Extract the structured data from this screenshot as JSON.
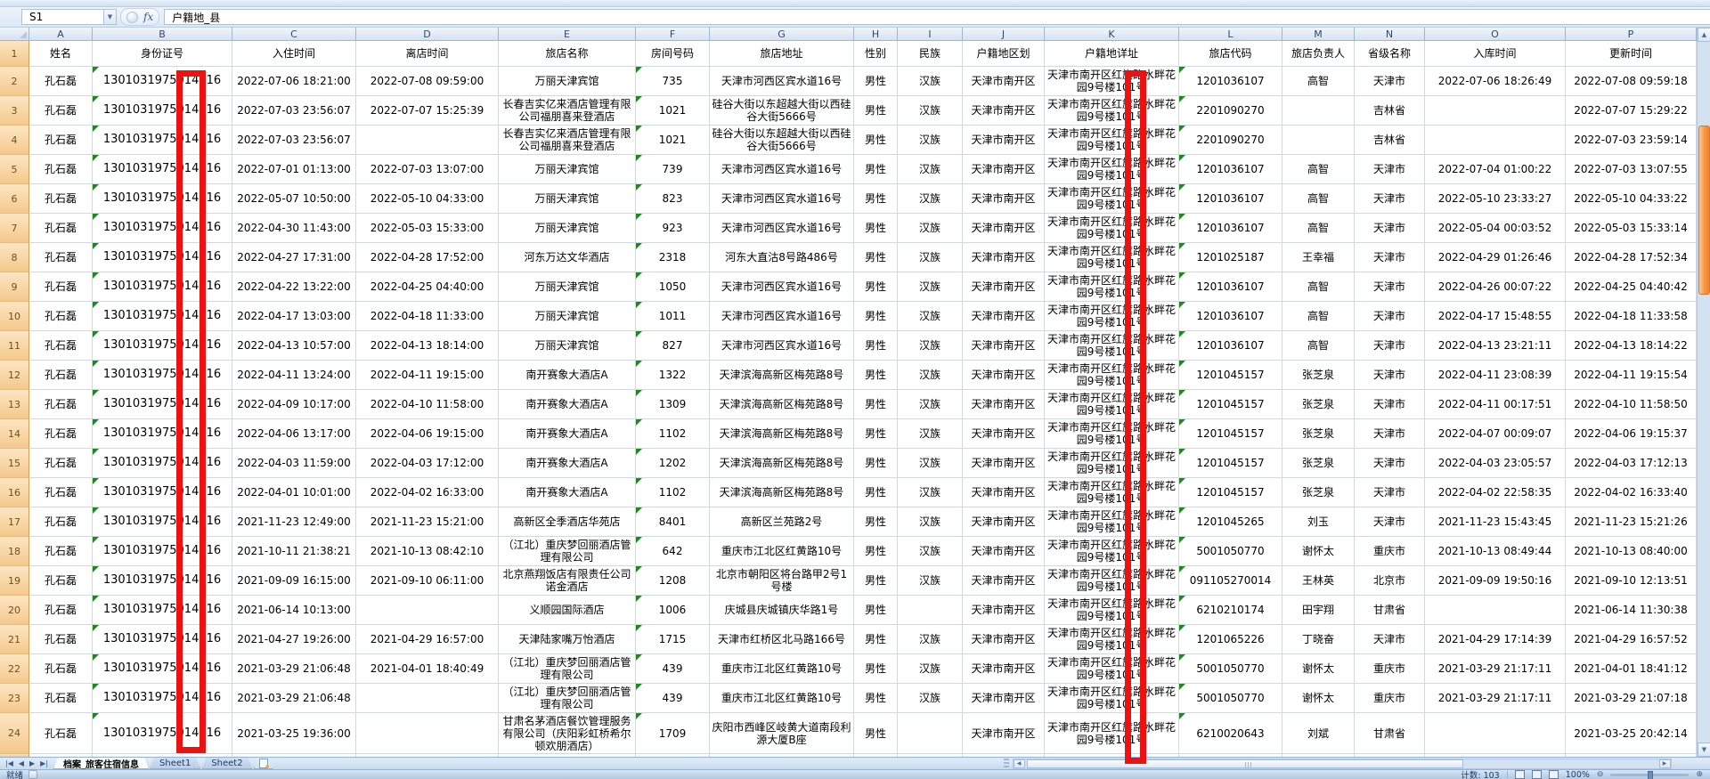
{
  "formula_bar": {
    "name_box": "S1",
    "fx_label": "fx",
    "formula": "户籍地_县"
  },
  "grid": {
    "columns": [
      {
        "letter": "A",
        "label": "姓名"
      },
      {
        "letter": "B",
        "label": "身份证号"
      },
      {
        "letter": "C",
        "label": "入住时间"
      },
      {
        "letter": "D",
        "label": "离店时间"
      },
      {
        "letter": "E",
        "label": "旅店名称"
      },
      {
        "letter": "F",
        "label": "房间号码"
      },
      {
        "letter": "G",
        "label": "旅店地址"
      },
      {
        "letter": "H",
        "label": "性别"
      },
      {
        "letter": "I",
        "label": "民族"
      },
      {
        "letter": "J",
        "label": "户籍地区划"
      },
      {
        "letter": "K",
        "label": "户籍地详址"
      },
      {
        "letter": "L",
        "label": "旅店代码"
      },
      {
        "letter": "M",
        "label": "旅店负责人"
      },
      {
        "letter": "N",
        "label": "省级名称"
      },
      {
        "letter": "O",
        "label": "入库时间"
      },
      {
        "letter": "P",
        "label": "更新时间"
      }
    ],
    "flag_columns": [
      1,
      5,
      11
    ],
    "rows": [
      {
        "n": 2,
        "cells": [
          "孔石磊",
          "1301031975014016",
          "2022-07-06 18:21:00",
          "2022-07-08 09:59:00",
          "万丽天津宾馆",
          "735",
          "天津市河西区宾水道16号",
          "男性",
          "汉族",
          "天津市南开区",
          "天津市南开区红旗路水畔花园9号楼101号",
          "1201036107",
          "高智",
          "天津市",
          "2022-07-06 18:26:49",
          "2022-07-08 09:59:18"
        ]
      },
      {
        "n": 3,
        "cells": [
          "孔石磊",
          "1301031975014016",
          "2022-07-03 23:56:07",
          "2022-07-07 15:25:39",
          "长春吉实亿来酒店管理有限公司福朋喜来登酒店",
          "1021",
          "硅谷大街以东超越大街以西硅谷大街5666号",
          "男性",
          "汉族",
          "天津市南开区",
          "天津市南开区红旗路水畔花园9号楼101号",
          "2201090270",
          "",
          "吉林省",
          "",
          "2022-07-07 15:29:22"
        ]
      },
      {
        "n": 4,
        "cells": [
          "孔石磊",
          "1301031975014016",
          "2022-07-03 23:56:07",
          "",
          "长春吉实亿来酒店管理有限公司福朋喜来登酒店",
          "1021",
          "硅谷大街以东超越大街以西硅谷大街5666号",
          "男性",
          "汉族",
          "天津市南开区",
          "天津市南开区红旗路水畔花园9号楼101号",
          "2201090270",
          "",
          "吉林省",
          "",
          "2022-07-03 23:59:14"
        ]
      },
      {
        "n": 5,
        "cells": [
          "孔石磊",
          "1301031975014016",
          "2022-07-01 01:13:00",
          "2022-07-03 13:07:00",
          "万丽天津宾馆",
          "739",
          "天津市河西区宾水道16号",
          "男性",
          "汉族",
          "天津市南开区",
          "天津市南开区红旗路水畔花园9号楼101号",
          "1201036107",
          "高智",
          "天津市",
          "2022-07-04 01:00:22",
          "2022-07-03 13:07:55"
        ]
      },
      {
        "n": 6,
        "cells": [
          "孔石磊",
          "1301031975014016",
          "2022-05-07 10:50:00",
          "2022-05-10 04:33:00",
          "万丽天津宾馆",
          "823",
          "天津市河西区宾水道16号",
          "男性",
          "汉族",
          "天津市南开区",
          "天津市南开区红旗路水畔花园9号楼101号",
          "1201036107",
          "高智",
          "天津市",
          "2022-05-10 23:33:27",
          "2022-05-10 04:33:22"
        ]
      },
      {
        "n": 7,
        "cells": [
          "孔石磊",
          "1301031975014016",
          "2022-04-30 11:43:00",
          "2022-05-03 15:33:00",
          "万丽天津宾馆",
          "923",
          "天津市河西区宾水道16号",
          "男性",
          "汉族",
          "天津市南开区",
          "天津市南开区红旗路水畔花园9号楼101号",
          "1201036107",
          "高智",
          "天津市",
          "2022-05-04 00:03:52",
          "2022-05-03 15:33:14"
        ]
      },
      {
        "n": 8,
        "cells": [
          "孔石磊",
          "1301031975014016",
          "2022-04-27 17:31:00",
          "2022-04-28 17:52:00",
          "河东万达文华酒店",
          "2318",
          "河东大直沽8号路486号",
          "男性",
          "汉族",
          "天津市南开区",
          "天津市南开区红旗路水畔花园9号楼101号",
          "1201025187",
          "王幸福",
          "天津市",
          "2022-04-29 01:26:46",
          "2022-04-28 17:52:34"
        ]
      },
      {
        "n": 9,
        "cells": [
          "孔石磊",
          "1301031975014016",
          "2022-04-22 13:22:00",
          "2022-04-25 04:40:00",
          "万丽天津宾馆",
          "1050",
          "天津市河西区宾水道16号",
          "男性",
          "汉族",
          "天津市南开区",
          "天津市南开区红旗路水畔花园9号楼101号",
          "1201036107",
          "高智",
          "天津市",
          "2022-04-26 00:07:22",
          "2022-04-25 04:40:42"
        ]
      },
      {
        "n": 10,
        "cells": [
          "孔石磊",
          "1301031975014016",
          "2022-04-17 13:03:00",
          "2022-04-18 11:33:00",
          "万丽天津宾馆",
          "1011",
          "天津市河西区宾水道16号",
          "男性",
          "汉族",
          "天津市南开区",
          "天津市南开区红旗路水畔花园9号楼101号",
          "1201036107",
          "高智",
          "天津市",
          "2022-04-17 15:48:55",
          "2022-04-18 11:33:58"
        ]
      },
      {
        "n": 11,
        "cells": [
          "孔石磊",
          "1301031975014016",
          "2022-04-13 10:57:00",
          "2022-04-13 18:14:00",
          "万丽天津宾馆",
          "827",
          "天津市河西区宾水道16号",
          "男性",
          "汉族",
          "天津市南开区",
          "天津市南开区红旗路水畔花园9号楼101号",
          "1201036107",
          "高智",
          "天津市",
          "2022-04-13 23:21:11",
          "2022-04-13 18:14:22"
        ]
      },
      {
        "n": 12,
        "cells": [
          "孔石磊",
          "1301031975014016",
          "2022-04-11 13:24:00",
          "2022-04-11 19:15:00",
          "南开赛象大酒店A",
          "1322",
          "天津滨海高新区梅苑路8号",
          "男性",
          "汉族",
          "天津市南开区",
          "天津市南开区红旗路水畔花园9号楼101号",
          "1201045157",
          "张芝泉",
          "天津市",
          "2022-04-11 23:08:39",
          "2022-04-11 19:15:54"
        ]
      },
      {
        "n": 13,
        "cells": [
          "孔石磊",
          "1301031975014016",
          "2022-04-09 10:17:00",
          "2022-04-10 11:58:00",
          "南开赛象大酒店A",
          "1309",
          "天津滨海高新区梅苑路8号",
          "男性",
          "汉族",
          "天津市南开区",
          "天津市南开区红旗路水畔花园9号楼101号",
          "1201045157",
          "张芝泉",
          "天津市",
          "2022-04-11 00:17:51",
          "2022-04-10 11:58:50"
        ]
      },
      {
        "n": 14,
        "cells": [
          "孔石磊",
          "1301031975014016",
          "2022-04-06 13:17:00",
          "2022-04-06 19:15:00",
          "南开赛象大酒店A",
          "1102",
          "天津滨海高新区梅苑路8号",
          "男性",
          "汉族",
          "天津市南开区",
          "天津市南开区红旗路水畔花园9号楼101号",
          "1201045157",
          "张芝泉",
          "天津市",
          "2022-04-07 00:09:07",
          "2022-04-06 19:15:37"
        ]
      },
      {
        "n": 15,
        "cells": [
          "孔石磊",
          "1301031975014016",
          "2022-04-03 11:59:00",
          "2022-04-03 17:12:00",
          "南开赛象大酒店A",
          "1202",
          "天津滨海高新区梅苑路8号",
          "男性",
          "汉族",
          "天津市南开区",
          "天津市南开区红旗路水畔花园9号楼101号",
          "1201045157",
          "张芝泉",
          "天津市",
          "2022-04-03 23:05:57",
          "2022-04-03 17:12:13"
        ]
      },
      {
        "n": 16,
        "cells": [
          "孔石磊",
          "1301031975014016",
          "2022-04-01 10:01:00",
          "2022-04-02 16:33:00",
          "南开赛象大酒店A",
          "1102",
          "天津滨海高新区梅苑路8号",
          "男性",
          "汉族",
          "天津市南开区",
          "天津市南开区红旗路水畔花园9号楼101号",
          "1201045157",
          "张芝泉",
          "天津市",
          "2022-04-02 22:58:35",
          "2022-04-02 16:33:40"
        ]
      },
      {
        "n": 17,
        "cells": [
          "孔石磊",
          "1301031975014016",
          "2021-11-23 12:49:00",
          "2021-11-23 15:21:00",
          "高新区全季酒店华苑店",
          "8401",
          "高新区兰苑路2号",
          "男性",
          "汉族",
          "天津市南开区",
          "天津市南开区红旗路水畔花园9号楼101号",
          "1201045265",
          "刘玉",
          "天津市",
          "2021-11-23 15:43:45",
          "2021-11-23 15:21:26"
        ]
      },
      {
        "n": 18,
        "cells": [
          "孔石磊",
          "1301031975014016",
          "2021-10-11 21:38:21",
          "2021-10-13 08:42:10",
          "（江北）重庆梦回丽酒店管理有限公司",
          "642",
          "重庆市江北区红黄路10号",
          "男性",
          "汉族",
          "天津市南开区",
          "天津市南开区红旗路水畔花园9号楼101号",
          "5001050770",
          "谢怀太",
          "重庆市",
          "2021-10-13 08:49:44",
          "2021-10-13 08:40:00"
        ]
      },
      {
        "n": 19,
        "cells": [
          "孔石磊",
          "1301031975014016",
          "2021-09-09 16:15:00",
          "2021-09-10 06:11:00",
          "北京燕翔饭店有限责任公司诺金酒店",
          "1208",
          "北京市朝阳区将台路甲2号1号楼",
          "男性",
          "汉族",
          "天津市南开区",
          "天津市南开区红旗路水畔花园9号楼101号",
          "091105270014",
          "王林英",
          "北京市",
          "2021-09-09 19:50:16",
          "2021-09-10 12:13:51"
        ]
      },
      {
        "n": 20,
        "cells": [
          "孔石磊",
          "1301031975014016",
          "2021-06-14 10:13:00",
          "",
          "义顺园国际酒店",
          "1006",
          "庆城县庆城镇庆华路1号",
          "男性",
          "",
          "天津市南开区",
          "天津市南开区红旗路水畔花园9号楼101号",
          "6210210174",
          "田宇翔",
          "甘肃省",
          "",
          "2021-06-14 11:30:38"
        ]
      },
      {
        "n": 21,
        "cells": [
          "孔石磊",
          "1301031975014016",
          "2021-04-27 19:26:00",
          "2021-04-29 16:57:00",
          "天津陆家嘴万怡酒店",
          "1715",
          "天津市红桥区北马路166号",
          "男性",
          "汉族",
          "天津市南开区",
          "天津市南开区红旗路水畔花园9号楼101号",
          "1201065226",
          "丁晓奋",
          "天津市",
          "2021-04-29 17:14:39",
          "2021-04-29 16:57:52"
        ]
      },
      {
        "n": 22,
        "cells": [
          "孔石磊",
          "1301031975014016",
          "2021-03-29 21:06:48",
          "2021-04-01 18:40:49",
          "（江北）重庆梦回丽酒店管理有限公司",
          "439",
          "重庆市江北区红黄路10号",
          "男性",
          "汉族",
          "天津市南开区",
          "天津市南开区红旗路水畔花园9号楼101号",
          "5001050770",
          "谢怀太",
          "重庆市",
          "2021-03-29 21:17:11",
          "2021-04-01 18:41:12"
        ]
      },
      {
        "n": 23,
        "cells": [
          "孔石磊",
          "1301031975014016",
          "2021-03-29 21:06:48",
          "",
          "（江北）重庆梦回丽酒店管理有限公司",
          "439",
          "重庆市江北区红黄路10号",
          "男性",
          "汉族",
          "天津市南开区",
          "天津市南开区红旗路水畔花园9号楼101号",
          "5001050770",
          "谢怀太",
          "重庆市",
          "2021-03-29 21:17:11",
          "2021-03-29 21:07:18"
        ]
      },
      {
        "n": 24,
        "cells": [
          "孔石磊",
          "1301031975014016",
          "2021-03-25 19:36:00",
          "",
          "甘肃名茅酒店餐饮管理服务有限公司（庆阳彩虹桥希尔顿欢朋酒店）",
          "1709",
          "庆阳市西峰区岐黄大道南段利源大厦B座",
          "男性",
          "",
          "天津市南开区",
          "天津市南开区红旗路水畔花园9号楼101号",
          "6210020643",
          "刘斌",
          "甘肃省",
          "",
          "2021-03-25 20:42:14"
        ]
      }
    ]
  },
  "annotations": {
    "highlight_color": "#EE1111",
    "boxes": [
      {
        "name": "idcard-digits-highlight",
        "column": "B"
      },
      {
        "name": "address-char-highlight",
        "column": "K"
      }
    ]
  },
  "sheet_tabs": {
    "tabs": [
      {
        "label": "档案_旅客住宿信息",
        "active": true
      },
      {
        "label": "Sheet1",
        "active": false
      },
      {
        "label": "Sheet2",
        "active": false
      }
    ]
  },
  "status_bar": {
    "ready": "就绪",
    "count": "计数: 103",
    "zoom_level": "100%"
  }
}
